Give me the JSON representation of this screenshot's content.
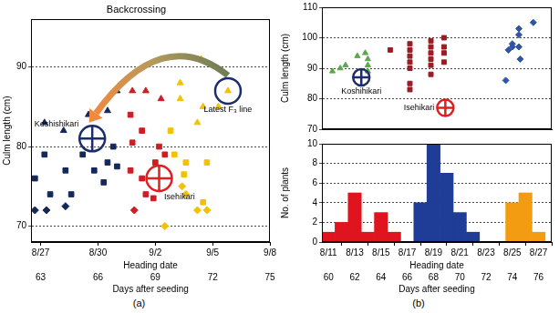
{
  "chart_data": [
    {
      "type": "scatter",
      "title": "Backcrossing",
      "panel": "(a)",
      "x_label": "Heading date",
      "x2_label": "Days after seeding",
      "y_label": "Culm length (cm)",
      "xlim": [
        62.5,
        75
      ],
      "xticks": [
        {
          "value": 63,
          "label": "8/27"
        },
        {
          "value": 66,
          "label": "8/30"
        },
        {
          "value": 69,
          "label": "9/2"
        },
        {
          "value": 72,
          "label": "9/5"
        },
        {
          "value": 75,
          "label": "9/8"
        }
      ],
      "x2ticks": [
        63,
        66,
        69,
        72,
        75
      ],
      "ylim": [
        68,
        96
      ],
      "yticks": [
        70,
        80,
        90
      ],
      "grid": true,
      "series": [
        {
          "color": "#14285a",
          "marker": "triangle",
          "x": [
            63.2,
            64.2,
            65.5,
            66.5,
            67.0
          ],
          "y": [
            83,
            82,
            84,
            84.5,
            87
          ]
        },
        {
          "color": "#14285a",
          "marker": "square",
          "x": [
            62.7,
            63.2,
            63.5,
            64.3,
            64.6,
            65.2,
            65.8,
            66.3,
            66.5,
            66.8,
            67.0
          ],
          "y": [
            76,
            79,
            74,
            77,
            74,
            79,
            77,
            75.5,
            78,
            80,
            77.5
          ]
        },
        {
          "color": "#14285a",
          "marker": "diamond",
          "x": [
            62.7,
            63.3,
            64.3
          ],
          "y": [
            72,
            72,
            72.5
          ]
        },
        {
          "color": "#d01c24",
          "marker": "triangle",
          "x": [
            67.8,
            68.5,
            69.3
          ],
          "y": [
            87,
            87,
            86
          ]
        },
        {
          "color": "#d01c24",
          "marker": "square",
          "x": [
            67.7,
            67.8,
            67.7,
            68.3,
            68.3,
            68.5,
            68.9,
            69.0,
            69.2,
            69.5
          ],
          "y": [
            84,
            80.5,
            77,
            82,
            76,
            74,
            73.5,
            78,
            80,
            79
          ]
        },
        {
          "color": "#d01c24",
          "marker": "diamond",
          "x": [
            67.9
          ],
          "y": [
            72
          ]
        },
        {
          "color": "#f2c200",
          "marker": "triangle",
          "x": [
            70.3,
            70.3,
            71.2,
            71.4,
            71.5,
            72.3,
            72.8
          ],
          "y": [
            88,
            86,
            83,
            91,
            85,
            85,
            87
          ]
        },
        {
          "color": "#f2c200",
          "marker": "square",
          "x": [
            69.8,
            70.0,
            70.6,
            70.5,
            71.7,
            71.5
          ],
          "y": [
            82,
            79,
            78,
            76.5,
            78,
            73
          ]
        },
        {
          "color": "#f2c200",
          "marker": "diamond",
          "x": [
            69.5,
            70.4,
            70.6,
            71.2,
            71.7
          ],
          "y": [
            70,
            75,
            74,
            72,
            72
          ]
        }
      ],
      "markers": [
        {
          "label": "Koshishikari",
          "x": 65.7,
          "y": 81,
          "color": "#1c2c6c",
          "marker": "circle_cross"
        },
        {
          "label": "Isehikari",
          "x": 69.2,
          "y": 76,
          "color": "#e02020",
          "marker": "circle_cross"
        },
        {
          "label": "Latest F₃ line",
          "x": 72.8,
          "y": 87,
          "color": "#1c2c6c",
          "marker": "circle"
        }
      ]
    },
    {
      "type": "scatter",
      "y_label": "Culm length (cm)",
      "tick_labels": "y",
      "xlim": [
        59.5,
        77
      ],
      "ylim": [
        70,
        110
      ],
      "yticks": [
        70,
        80,
        90,
        100,
        110
      ],
      "grid": true,
      "series": [
        {
          "color": "#5aa84a",
          "marker": "triangle",
          "x": [
            60.3,
            60.9,
            61.3,
            62.2,
            62.8,
            63.0,
            63.0,
            63.0
          ],
          "y": [
            89,
            90,
            91,
            94,
            95,
            93,
            91,
            89
          ]
        },
        {
          "color": "#9b1c24",
          "marker": "square",
          "x": [
            64.7,
            66.2,
            66.2,
            66.2,
            66.2,
            66.2,
            66.2,
            66.2,
            67.8,
            67.8,
            67.8,
            67.8,
            67.8,
            67.8,
            68.8,
            68.8,
            68.8,
            68.8
          ],
          "y": [
            96,
            98,
            96,
            94,
            92,
            90,
            85,
            83,
            99,
            97,
            95,
            93,
            91,
            88,
            100,
            97,
            95,
            92
          ]
        },
        {
          "color": "#2f55a4",
          "marker": "diamond",
          "x": [
            73.5,
            73.7,
            74.0,
            74.0,
            74.5,
            74.5,
            74.5,
            74.6,
            75.6
          ],
          "y": [
            86,
            96,
            97,
            98,
            101,
            103,
            97,
            93,
            105
          ]
        }
      ],
      "markers": [
        {
          "label": "Koshihikari",
          "x": 62.5,
          "y": 87,
          "color": "#1c2c6c",
          "marker": "circle_cross"
        },
        {
          "label": "Isehikari",
          "x": 68.9,
          "y": 77,
          "color": "#e02020",
          "marker": "circle_cross"
        }
      ]
    },
    {
      "type": "histogram",
      "panel": "(b)",
      "x_label": "Heading date",
      "x2_label": "Days after seeding",
      "y_label": "No. of plants",
      "xlim": [
        59.5,
        77
      ],
      "xticks": [
        {
          "value": 60,
          "label": "8/11"
        },
        {
          "value": 62,
          "label": "8/13"
        },
        {
          "value": 64,
          "label": "8/15"
        },
        {
          "value": 66,
          "label": "8/17"
        },
        {
          "value": 68,
          "label": "8/19"
        },
        {
          "value": 70,
          "label": "8/21"
        },
        {
          "value": 72,
          "label": "8/23"
        },
        {
          "value": 74,
          "label": "8/25"
        },
        {
          "value": 76,
          "label": "8/27"
        }
      ],
      "x2ticks": [
        60,
        62,
        64,
        66,
        68,
        70,
        72,
        74,
        76
      ],
      "ylim": [
        0,
        10
      ],
      "yticks": [
        0,
        2,
        4,
        6,
        8,
        10
      ],
      "grid": true,
      "bins": [
        59.5,
        60.5,
        61.5,
        62.5,
        63.5,
        64.5,
        65.5,
        66.5,
        67.5,
        68.5,
        69.5,
        70.5,
        71.5,
        72.5,
        73.5,
        74.5,
        75.5,
        76.5
      ],
      "counts": [
        1,
        2,
        5,
        1,
        3,
        1,
        0,
        4,
        10,
        7,
        3,
        1,
        0,
        0,
        4,
        5,
        1
      ],
      "colors": [
        "#e0141e",
        "#e0141e",
        "#e0141e",
        "#e0141e",
        "#e0141e",
        "#e0141e",
        "#1f3c96",
        "#1f3c96",
        "#1f3c96",
        "#1f3c96",
        "#1f3c96",
        "#1f3c96",
        "#1f3c96",
        "#f39c12",
        "#f39c12",
        "#f39c12",
        "#f39c12"
      ]
    }
  ]
}
